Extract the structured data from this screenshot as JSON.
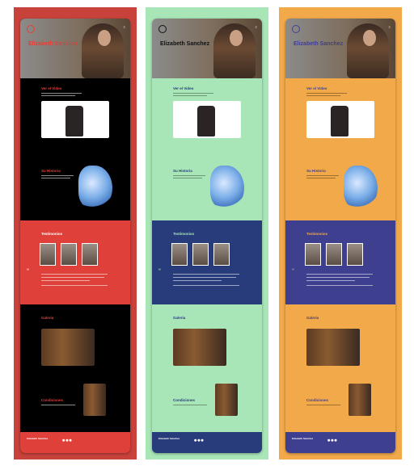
{
  "variants": [
    {
      "id": "red",
      "background": "#c8423b",
      "accent": "#e0403a",
      "hero_name": "Elizabeth Sanchez",
      "hero_sub": "",
      "video_title": "Ver el Video",
      "history_title": "Su Historia",
      "testimonials_title": "Testimonios",
      "gallery_title": "Galeria",
      "conditions_title": "Condiciones",
      "footer_name": "Elizabeth Sanchez"
    },
    {
      "id": "green",
      "background": "#a8e6b7",
      "accent": "#283c7b",
      "hero_name": "Elizabeth Sanchez",
      "hero_sub": "",
      "video_title": "Ver el Video",
      "history_title": "Su Historia",
      "testimonials_title": "Testimonios",
      "gallery_title": "Galeria",
      "conditions_title": "Condiciones",
      "footer_name": "Elizabeth Sanchez"
    },
    {
      "id": "orange",
      "background": "#f2a94a",
      "accent": "#3f3f8f",
      "hero_name": "Elizabeth Sanchez",
      "hero_sub": "",
      "video_title": "Ver el Video",
      "history_title": "Su Historia",
      "testimonials_title": "Testimonios",
      "gallery_title": "Galeria",
      "conditions_title": "Condiciones",
      "footer_name": "Elizabeth Sanchez"
    }
  ]
}
